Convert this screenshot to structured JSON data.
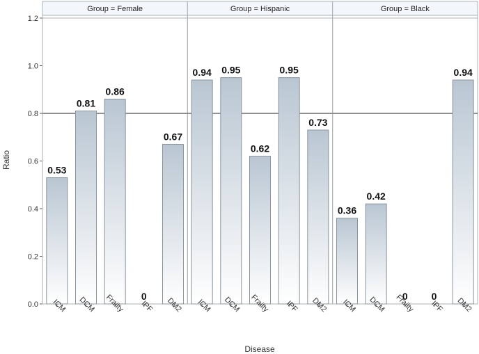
{
  "chart_data": {
    "type": "bar",
    "xlabel": "Disease",
    "ylabel": "Ratio",
    "ylim": [
      0,
      1.2
    ],
    "yticks": [
      "0.0",
      "0.2",
      "0.4",
      "0.6",
      "0.8",
      "1.0",
      "1.2"
    ],
    "reference_line": 0.8,
    "categories": [
      "ICM",
      "DCM",
      "Frailty",
      "IPF",
      "DM2"
    ],
    "panels": [
      {
        "title": "Group = Female",
        "values": [
          0.53,
          0.81,
          0.86,
          0,
          0.67
        ],
        "labels": [
          "0.53",
          "0.81",
          "0.86",
          "0",
          "0.67"
        ]
      },
      {
        "title": "Group = Hispanic",
        "values": [
          0.94,
          0.95,
          0.62,
          0.95,
          0.73
        ],
        "labels": [
          "0.94",
          "0.95",
          "0.62",
          "0.95",
          "0.73"
        ]
      },
      {
        "title": "Group = Black",
        "values": [
          0.36,
          0.42,
          0,
          0,
          0.94
        ],
        "labels": [
          "0.36",
          "0.42",
          "0",
          "0",
          "0.94"
        ]
      }
    ],
    "colors": {
      "bar_top": "#b9c6d2",
      "bar_bottom": "#ffffff",
      "bar_stroke": "#8a949c",
      "frame": "#a9b2b7",
      "header_bg": "#f3f6fa",
      "refline": "#222222"
    }
  }
}
